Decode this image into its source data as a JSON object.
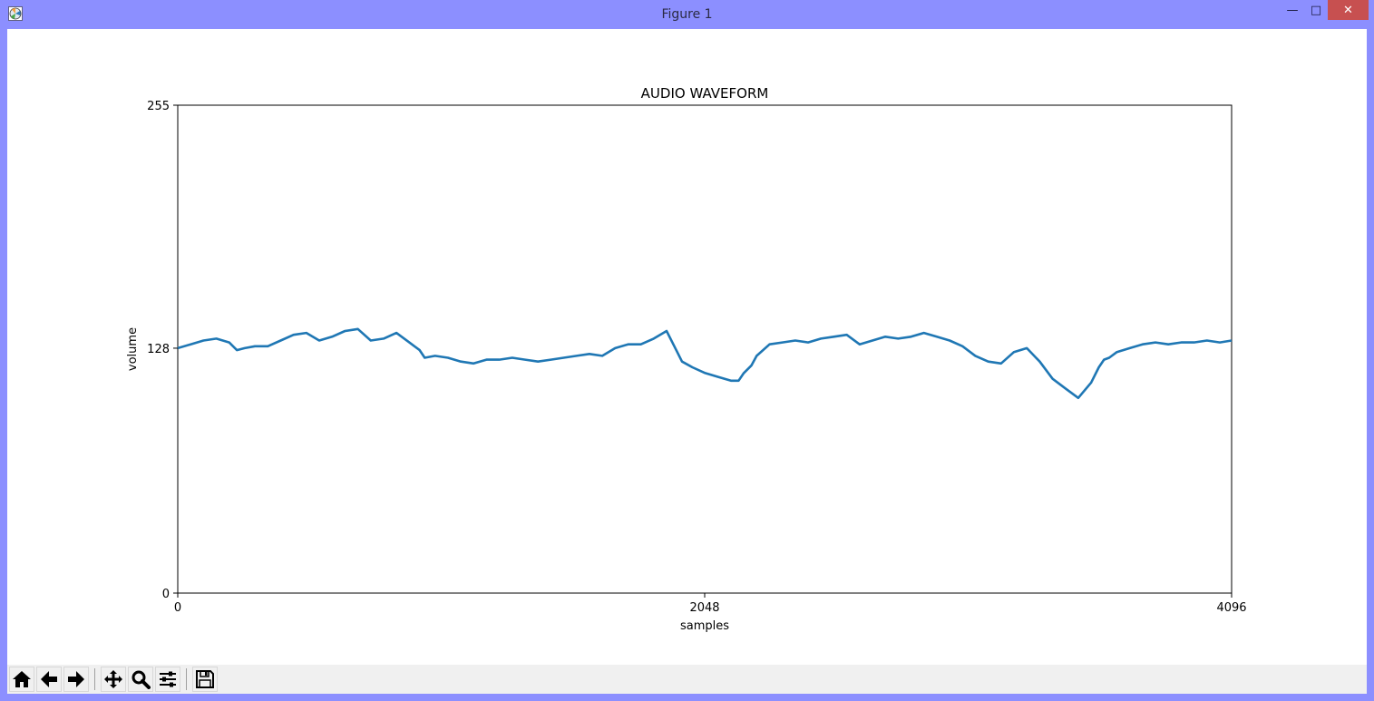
{
  "window": {
    "title": "Figure 1",
    "controls": {
      "minimize": "—",
      "maximize": "□",
      "close": "✕"
    }
  },
  "toolbar": {
    "buttons": [
      {
        "name": "home-icon",
        "tooltip": "Reset original view"
      },
      {
        "name": "back-arrow-icon",
        "tooltip": "Back"
      },
      {
        "name": "forward-arrow-icon",
        "tooltip": "Forward"
      },
      {
        "name": "pan-icon",
        "tooltip": "Pan"
      },
      {
        "name": "zoom-icon",
        "tooltip": "Zoom"
      },
      {
        "name": "configure-subplots-icon",
        "tooltip": "Configure subplots"
      },
      {
        "name": "save-icon",
        "tooltip": "Save"
      }
    ]
  },
  "chart_data": {
    "type": "line",
    "title": "AUDIO WAVEFORM",
    "xlabel": "samples",
    "ylabel": "volume",
    "xlim": [
      0,
      4096
    ],
    "ylim": [
      0,
      255
    ],
    "xticks": [
      "0",
      "2048",
      "4096"
    ],
    "yticks": [
      "0",
      "128",
      "255"
    ],
    "grid": false,
    "line_color": "#1f77b4",
    "series": [
      {
        "x": [
          0,
          50,
          100,
          150,
          200,
          230,
          260,
          300,
          350,
          400,
          450,
          500,
          550,
          600,
          650,
          700,
          750,
          800,
          850,
          900,
          940,
          960,
          1000,
          1050,
          1100,
          1150,
          1200,
          1250,
          1300,
          1350,
          1400,
          1450,
          1500,
          1550,
          1600,
          1650,
          1700,
          1750,
          1800,
          1850,
          1900,
          1930,
          1960,
          2000,
          2050,
          2100,
          2150,
          2180,
          2200,
          2230,
          2250,
          2300,
          2350,
          2400,
          2450,
          2500,
          2550,
          2600,
          2650,
          2700,
          2750,
          2800,
          2850,
          2900,
          2950,
          3000,
          3050,
          3100,
          3150,
          3200,
          3250,
          3300,
          3350,
          3400,
          3450,
          3500,
          3550,
          3580,
          3600,
          3620,
          3650,
          3700,
          3750,
          3800,
          3850,
          3900,
          3950,
          4000,
          4050,
          4096
        ],
        "y": [
          128,
          130,
          132,
          133,
          131,
          127,
          128,
          129,
          129,
          132,
          135,
          136,
          132,
          134,
          137,
          138,
          132,
          133,
          136,
          131,
          127,
          123,
          124,
          123,
          121,
          120,
          122,
          122,
          123,
          122,
          121,
          122,
          123,
          124,
          125,
          124,
          128,
          130,
          130,
          133,
          137,
          129,
          121,
          118,
          115,
          113,
          111,
          111,
          115,
          119,
          124,
          130,
          131,
          132,
          131,
          133,
          134,
          135,
          130,
          132,
          134,
          133,
          134,
          136,
          134,
          132,
          129,
          124,
          121,
          120,
          126,
          128,
          121,
          112,
          107,
          102,
          110,
          118,
          122,
          123,
          126,
          128,
          130,
          131,
          130,
          131,
          131,
          132,
          131,
          132
        ]
      }
    ]
  }
}
